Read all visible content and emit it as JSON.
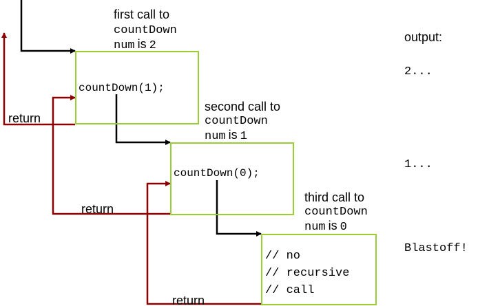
{
  "calls": [
    {
      "heading": "first call to",
      "func": "countDown",
      "var": "num",
      "is_word": "is",
      "value": "2",
      "body_lines": [
        "countDown(1);"
      ],
      "return_label": "return"
    },
    {
      "heading": "second call to",
      "func": "countDown",
      "var": "num",
      "is_word": "is",
      "value": "1",
      "body_lines": [
        "countDown(0);"
      ],
      "return_label": "return"
    },
    {
      "heading": "third call to",
      "func": "countDown",
      "var": "num",
      "is_word": "is",
      "value": "0",
      "body_lines": [
        "// no",
        "// recursive",
        "// call"
      ],
      "return_label": "return"
    }
  ],
  "output": {
    "label": "output:",
    "lines": [
      "2...",
      "1...",
      "Blastoff!"
    ]
  },
  "colors": {
    "box_border": "#9acd32",
    "call_arrow": "#000000",
    "return_arrow": "#8b0000"
  }
}
